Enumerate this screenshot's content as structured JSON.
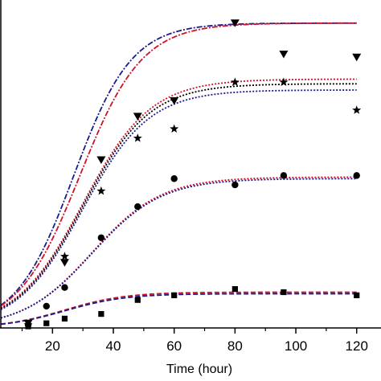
{
  "chart_data": {
    "type": "scatter",
    "title": "",
    "xlabel": "Time (hour)",
    "ylabel": "",
    "xlim": [
      3,
      128
    ],
    "ylim": [
      0,
      1.0
    ],
    "x_ticks": [
      20,
      40,
      60,
      80,
      100,
      120
    ],
    "x_tick_labels": [
      "20",
      "40",
      "60",
      "80",
      "100",
      "120"
    ],
    "grid": false,
    "legend": "none",
    "scatter_series": [
      {
        "marker": "triangle-down",
        "color": "#000000",
        "points": [
          [
            12,
            0.015
          ],
          [
            24,
            0.21
          ],
          [
            36,
            0.54
          ],
          [
            48,
            0.68
          ],
          [
            60,
            0.73
          ],
          [
            80,
            0.98
          ],
          [
            96,
            0.88
          ],
          [
            120,
            0.87
          ]
        ]
      },
      {
        "marker": "star",
        "color": "#000000",
        "points": [
          [
            12,
            0.01
          ],
          [
            24,
            0.23
          ],
          [
            36,
            0.44
          ],
          [
            48,
            0.61
          ],
          [
            60,
            0.64
          ],
          [
            80,
            0.79
          ],
          [
            96,
            0.79
          ],
          [
            120,
            0.7
          ]
        ]
      },
      {
        "marker": "circle",
        "color": "#000000",
        "points": [
          [
            12,
            0.01
          ],
          [
            18,
            0.07
          ],
          [
            24,
            0.13
          ],
          [
            36,
            0.29
          ],
          [
            48,
            0.39
          ],
          [
            60,
            0.48
          ],
          [
            80,
            0.46
          ],
          [
            96,
            0.49
          ],
          [
            120,
            0.49
          ]
        ]
      },
      {
        "marker": "square",
        "color": "#000000",
        "points": [
          [
            12,
            0.005
          ],
          [
            18,
            0.015
          ],
          [
            24,
            0.03
          ],
          [
            36,
            0.045
          ],
          [
            48,
            0.09
          ],
          [
            60,
            0.105
          ],
          [
            80,
            0.125
          ],
          [
            96,
            0.115
          ],
          [
            120,
            0.105
          ]
        ]
      }
    ],
    "fit_curves": [
      {
        "style": "dash-dot",
        "color": "#1a1a8c",
        "plateau": 0.98,
        "rate": 0.105,
        "midpoint": 27
      },
      {
        "style": "dash-dot",
        "color": "#d0102a",
        "plateau": 0.98,
        "rate": 0.098,
        "midpoint": 29
      },
      {
        "style": "dotted",
        "color": "#d0102a",
        "plateau": 0.8,
        "rate": 0.09,
        "midpoint": 30
      },
      {
        "style": "dotted",
        "color": "#000000",
        "plateau": 0.785,
        "rate": 0.091,
        "midpoint": 30
      },
      {
        "style": "dotted",
        "color": "#1a1a8c",
        "plateau": 0.765,
        "rate": 0.092,
        "midpoint": 30
      },
      {
        "style": "dotted",
        "color": "#d0102a",
        "plateau": 0.485,
        "rate": 0.088,
        "midpoint": 33
      },
      {
        "style": "dotted",
        "color": "#1a1a8c",
        "plateau": 0.48,
        "rate": 0.088,
        "midpoint": 33
      },
      {
        "style": "dashed",
        "color": "#d0102a",
        "plateau": 0.115,
        "rate": 0.1,
        "midpoint": 24
      },
      {
        "style": "dashed",
        "color": "#1a1a8c",
        "plateau": 0.11,
        "rate": 0.1,
        "midpoint": 24
      }
    ]
  }
}
